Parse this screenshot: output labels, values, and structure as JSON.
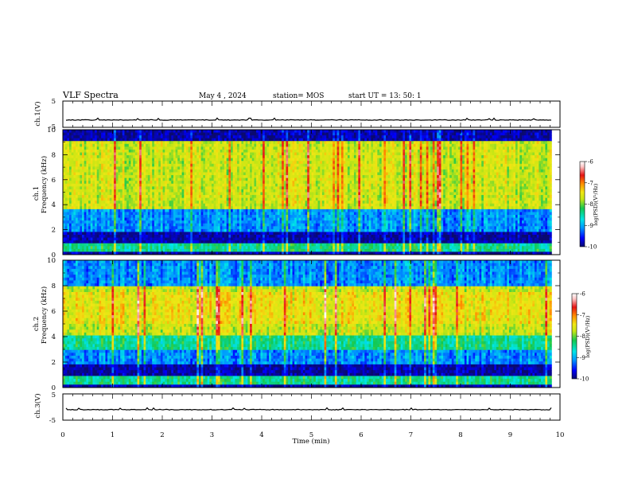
{
  "header": {
    "title": "VLF Spectra",
    "date": "May 4  , 2024",
    "station": "station= MOS",
    "start": "start  UT  =    13: 50: 1"
  },
  "colors": {
    "spectrum_scale": [
      "#0a0a6e",
      "#0000ff",
      "#0096ff",
      "#00e6e6",
      "#14c850",
      "#c8e614",
      "#f0e614",
      "#ff8c00",
      "#e61414",
      "#ffc8c8",
      "#ffffff"
    ]
  },
  "chart_data": [
    {
      "type": "line",
      "panel": "ch1-voltage",
      "ylabel": "ch.1(V)",
      "ylim": [
        -5,
        5
      ],
      "yticks": [
        "5",
        "-5"
      ],
      "baseline": -2.2
    },
    {
      "type": "heatmap",
      "panel": "ch1-spectrogram",
      "ylabel": "ch.1\nFrequency  (kHz)",
      "ylabel_lines": [
        "ch.1",
        "Frequency  (kHz)"
      ],
      "xlim": [
        0,
        10
      ],
      "ylim": [
        0,
        10
      ],
      "data_extent_min": 9.83,
      "yticks": [
        "0",
        "2",
        "4",
        "6",
        "8",
        "10"
      ],
      "colorbar": {
        "label": "log(PSD)(V²/Hz)",
        "range": [
          -10,
          -6
        ],
        "ticks": [
          "-6",
          "-7",
          "-8",
          "-9",
          "-10"
        ]
      },
      "bands_khz": [
        {
          "range": [
            0,
            0.3
          ],
          "level": "very-low"
        },
        {
          "range": [
            0.3,
            1.0
          ],
          "level": "moderate"
        },
        {
          "range": [
            1.0,
            1.8
          ],
          "level": "very-low"
        },
        {
          "range": [
            1.8,
            2.6
          ],
          "level": "low"
        },
        {
          "range": [
            2.6,
            3.6
          ],
          "level": "low"
        },
        {
          "range": [
            3.6,
            9.0
          ],
          "level": "high"
        },
        {
          "range": [
            9.0,
            10.0
          ],
          "level": "very-low"
        }
      ]
    },
    {
      "type": "heatmap",
      "panel": "ch2-spectrogram",
      "ylabel": "ch.2\nFrequency  (kHz)",
      "ylabel_lines": [
        "ch.2",
        "Frequency  (kHz)"
      ],
      "xlim": [
        0,
        10
      ],
      "ylim": [
        0,
        10
      ],
      "data_extent_min": 9.83,
      "yticks": [
        "0",
        "2",
        "4",
        "6",
        "8",
        "10"
      ],
      "colorbar": {
        "label": "log(PSD)(V²/Hz)",
        "range": [
          -10,
          -6
        ],
        "ticks": [
          "-6",
          "-7",
          "-8",
          "-9",
          "-10"
        ]
      },
      "bands_khz": [
        {
          "range": [
            0,
            0.3
          ],
          "level": "very-low"
        },
        {
          "range": [
            0.3,
            1.0
          ],
          "level": "moderate"
        },
        {
          "range": [
            1.0,
            1.8
          ],
          "level": "very-low"
        },
        {
          "range": [
            1.8,
            3.0
          ],
          "level": "low"
        },
        {
          "range": [
            3.0,
            4.0
          ],
          "level": "moderate"
        },
        {
          "range": [
            4.0,
            8.0
          ],
          "level": "high"
        },
        {
          "range": [
            8.0,
            10.0
          ],
          "level": "low"
        }
      ]
    },
    {
      "type": "line",
      "panel": "ch3-voltage",
      "ylabel": "ch.3(V)",
      "ylim": [
        -5,
        5
      ],
      "yticks": [
        "5",
        "-5"
      ],
      "baseline": -1.0,
      "xlabel": "Time  (min)",
      "xlim": [
        0,
        10
      ],
      "xticks": [
        "0",
        "1",
        "2",
        "3",
        "4",
        "5",
        "6",
        "7",
        "8",
        "9",
        "10"
      ]
    }
  ]
}
